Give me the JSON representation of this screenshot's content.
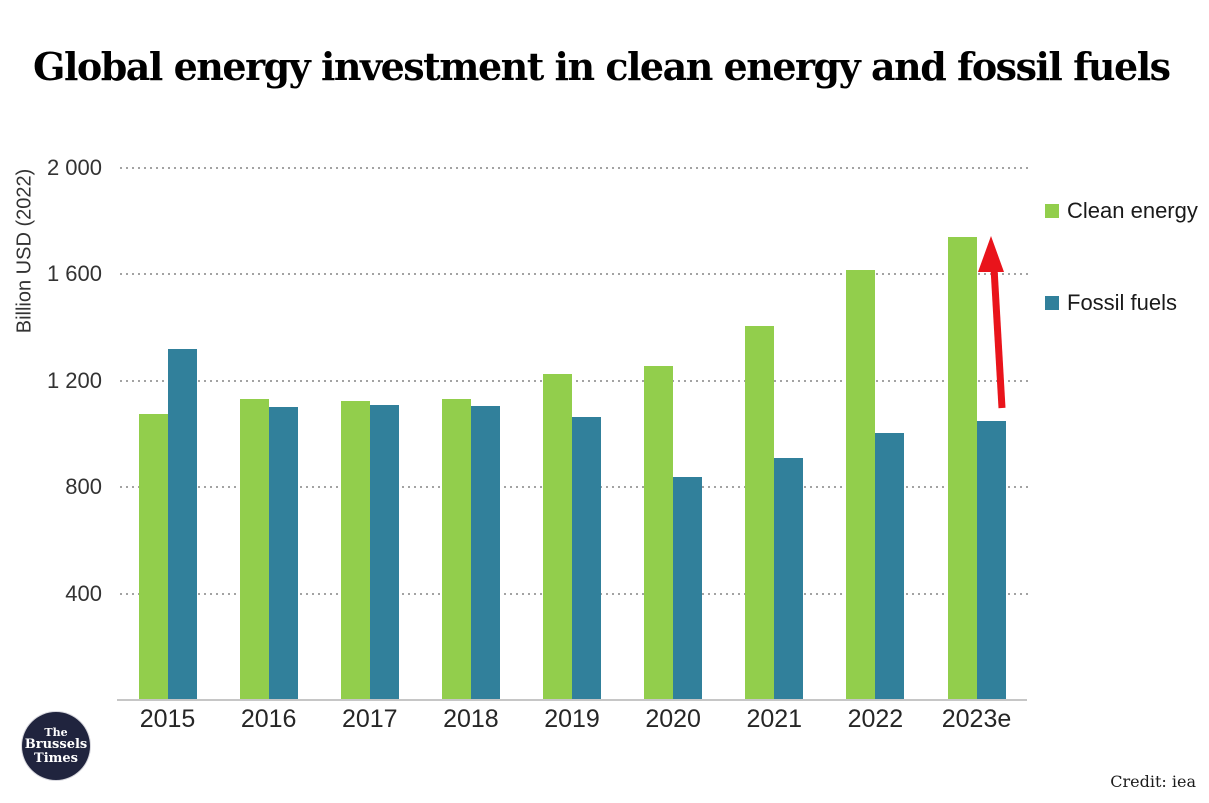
{
  "page": {
    "title": "Global energy investment in clean energy and fossil fuels",
    "credit": "Credit: iea"
  },
  "logo": {
    "lines": [
      "The",
      "Brussels",
      "Times"
    ]
  },
  "chart_data": {
    "type": "bar",
    "title": "Global energy investment in clean energy and fossil fuels",
    "xlabel": "",
    "ylabel": "Billion USD (2022)",
    "ylim": [
      0,
      2000
    ],
    "yticks": [
      {
        "value": 2000,
        "label": "2 000"
      },
      {
        "value": 1600,
        "label": "1 600"
      },
      {
        "value": 1200,
        "label": "1 200"
      },
      {
        "value": 800,
        "label": "800"
      },
      {
        "value": 400,
        "label": "400"
      }
    ],
    "categories": [
      "2015",
      "2016",
      "2017",
      "2018",
      "2019",
      "2020",
      "2021",
      "2022",
      "2023e"
    ],
    "series": [
      {
        "name": "Clean energy",
        "color": "#92ce4c",
        "values": [
          1075,
          1130,
          1125,
          1130,
          1225,
          1255,
          1405,
          1615,
          1740
        ]
      },
      {
        "name": "Fossil fuels",
        "color": "#31809b",
        "values": [
          1320,
          1100,
          1110,
          1105,
          1065,
          840,
          910,
          1005,
          1050
        ]
      }
    ],
    "grid": "horizontal-dotted",
    "legend_position": "top-right",
    "annotation": {
      "type": "up-arrow",
      "color": "#e9141b",
      "target_category": "2023e"
    }
  }
}
